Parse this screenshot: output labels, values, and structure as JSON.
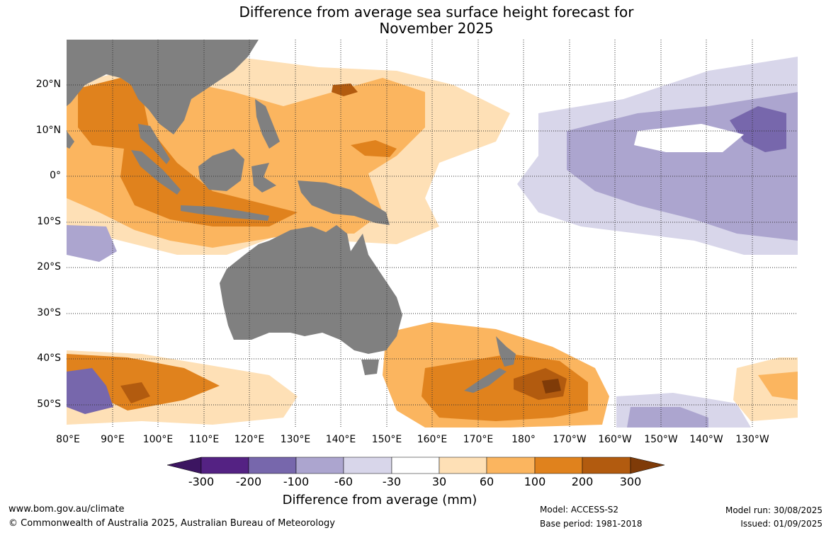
{
  "title": {
    "line1": "Difference from average sea surface height forecast for",
    "line2": "November 2025"
  },
  "map": {
    "lat_ticks": [
      "20°N",
      "10°N",
      "0°",
      "10°S",
      "20°S",
      "30°S",
      "40°S",
      "50°S"
    ],
    "lon_ticks": [
      "80°E",
      "90°E",
      "100°E",
      "110°E",
      "120°E",
      "130°E",
      "140°E",
      "150°E",
      "160°E",
      "170°E",
      "180°",
      "170°W",
      "160°W",
      "150°W",
      "140°W",
      "130°W"
    ],
    "extent": {
      "lon_min": 80,
      "lon_max": 240,
      "lat_min": -55,
      "lat_max": 30
    },
    "land_color": "#808080"
  },
  "colorbar": {
    "labels": [
      "-300",
      "-200",
      "-100",
      "-60",
      "-30",
      "30",
      "60",
      "100",
      "200",
      "300"
    ],
    "colors": [
      "#3c1561",
      "#542283",
      "#7767ac",
      "#aca5cf",
      "#d8d6ea",
      "#ffffff",
      "#fee0b6",
      "#fbb55f",
      "#e0821d",
      "#b25b0f",
      "#7f3b08"
    ],
    "title": "Difference from average (mm)"
  },
  "footer": {
    "url": "www.bom.gov.au/climate",
    "copyright": "© Commonwealth of Australia 2025, Australian Bureau of Meteorology",
    "model": "Model: ACCESS-S2",
    "base_period": "Base period: 1981-2018",
    "model_run": "Model run: 30/08/2025",
    "issued": "Issued: 01/09/2025"
  }
}
